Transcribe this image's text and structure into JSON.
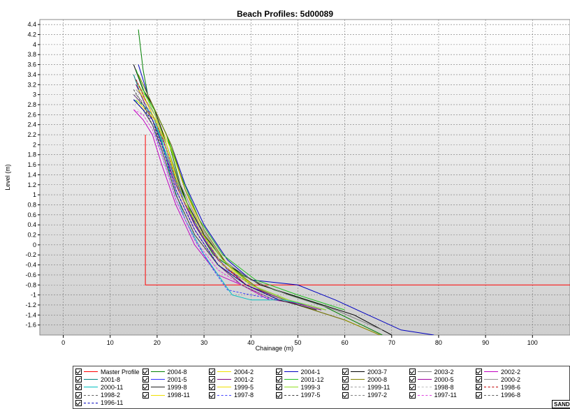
{
  "chart_data": {
    "type": "line",
    "title": "Beach Profiles: 5d00089",
    "xlabel": "Chainage (m)",
    "ylabel": "Level (m)",
    "xlim": [
      -5,
      108
    ],
    "ylim": [
      -1.8,
      4.5
    ],
    "x_ticks": [
      "0",
      "10",
      "20",
      "30",
      "40",
      "50",
      "60",
      "70",
      "80",
      "90",
      "100"
    ],
    "y_ticks": [
      "4.4",
      "4.2",
      "4",
      "3.8",
      "3.6",
      "3.4",
      "3.2",
      "3",
      "2.8",
      "2.6",
      "2.4",
      "2.2",
      "2",
      "1.8",
      "1.6",
      "1.4",
      "1.2",
      "1",
      "0.8",
      "0.6",
      "0.4",
      "0.2",
      "0",
      "-0.2",
      "-0.4",
      "-0.6",
      "-0.8",
      "-1",
      "-1.2",
      "-1.4",
      "-1.6"
    ],
    "grid": true,
    "legend_position": "bottom",
    "series": [
      {
        "name": "Master Profile",
        "color": "#ff0000",
        "dash": "",
        "x": [
          17.5,
          17.5,
          108
        ],
        "y": [
          2.2,
          -0.8,
          -0.8
        ]
      },
      {
        "name": "2004-8",
        "color": "#008000",
        "dash": "",
        "x": [
          16,
          17,
          18,
          20,
          22,
          25,
          28,
          32,
          38,
          45,
          55,
          68
        ],
        "y": [
          4.3,
          3.5,
          3.0,
          2.6,
          2.2,
          1.2,
          0.4,
          -0.2,
          -0.6,
          -0.9,
          -1.2,
          -1.8
        ]
      },
      {
        "name": "2004-2",
        "color": "#f0e000",
        "dash": "",
        "x": [
          16,
          17.5,
          19,
          21,
          23,
          26,
          30,
          36,
          42,
          50,
          60,
          70
        ],
        "y": [
          3.2,
          2.9,
          2.6,
          2.3,
          1.9,
          1.1,
          0.2,
          -0.5,
          -0.9,
          -1.2,
          -1.5,
          -1.9
        ]
      },
      {
        "name": "2004-1",
        "color": "#0000c0",
        "dash": "",
        "x": [
          16,
          18,
          20,
          23,
          26,
          30,
          35,
          40,
          50,
          58,
          65,
          72,
          79
        ],
        "y": [
          3.6,
          3.0,
          2.6,
          2.0,
          1.2,
          0.4,
          -0.3,
          -0.7,
          -0.8,
          -1.1,
          -1.4,
          -1.7,
          -1.8
        ]
      },
      {
        "name": "2003-7",
        "color": "#000000",
        "dash": "",
        "x": [
          15,
          17,
          19,
          21,
          23,
          26,
          30,
          35,
          42,
          52,
          62,
          70
        ],
        "y": [
          3.6,
          3.1,
          2.8,
          2.3,
          1.7,
          0.9,
          0.2,
          -0.4,
          -0.8,
          -1.1,
          -1.4,
          -1.8
        ]
      },
      {
        "name": "2003-2",
        "color": "#808080",
        "dash": "",
        "x": [
          15.5,
          17.5,
          19.5,
          22,
          25,
          29,
          34,
          40,
          48,
          58,
          68
        ],
        "y": [
          3.3,
          2.9,
          2.5,
          2.0,
          1.2,
          0.4,
          -0.3,
          -0.7,
          -1.0,
          -1.3,
          -1.7
        ]
      },
      {
        "name": "2002-2",
        "color": "#c000c0",
        "dash": "",
        "x": [
          15,
          17,
          19,
          21,
          24,
          28,
          33,
          38,
          44
        ],
        "y": [
          2.7,
          2.5,
          2.2,
          1.6,
          0.8,
          0.0,
          -0.6,
          -0.8,
          -1.1
        ]
      },
      {
        "name": "2001-8",
        "color": "#008080",
        "dash": "",
        "x": [
          15,
          16.5,
          18,
          20,
          22,
          25,
          29,
          34,
          40,
          48,
          56
        ],
        "y": [
          3.4,
          3.0,
          2.7,
          2.3,
          1.8,
          1.0,
          0.3,
          -0.4,
          -0.8,
          -1.1,
          -1.3
        ]
      },
      {
        "name": "2001-5",
        "color": "#3030ff",
        "dash": "",
        "x": [
          15,
          17,
          19,
          21,
          23,
          26,
          30,
          35,
          42,
          50,
          60
        ],
        "y": [
          3.0,
          2.8,
          2.6,
          2.2,
          1.6,
          0.8,
          0.1,
          -0.5,
          -0.9,
          -1.2,
          -1.5
        ]
      },
      {
        "name": "2001-2",
        "color": "#800080",
        "dash": "",
        "x": [
          15.5,
          17,
          19,
          21,
          24,
          28,
          33,
          39,
          47,
          55
        ],
        "y": [
          3.2,
          2.9,
          2.5,
          2.0,
          1.2,
          0.4,
          -0.3,
          -0.8,
          -1.1,
          -1.3
        ]
      },
      {
        "name": "2001-12",
        "color": "#20c020",
        "dash": "",
        "x": [
          15.5,
          17.5,
          20,
          22,
          25,
          29,
          34,
          41,
          50,
          60
        ],
        "y": [
          3.5,
          3.0,
          2.6,
          2.2,
          1.4,
          0.5,
          -0.2,
          -0.7,
          -1.0,
          -1.3
        ]
      },
      {
        "name": "2000-8",
        "color": "#808000",
        "dash": "",
        "x": [
          16,
          18,
          20,
          23,
          26,
          30,
          35,
          42,
          50,
          60,
          70
        ],
        "y": [
          3.4,
          3.0,
          2.6,
          2.0,
          1.1,
          0.3,
          -0.4,
          -0.9,
          -1.2,
          -1.5,
          -1.9
        ]
      },
      {
        "name": "2000-5",
        "color": "#a000a0",
        "dash": "",
        "x": [
          15,
          17,
          19,
          21,
          24,
          28,
          33,
          38,
          45,
          52
        ],
        "y": [
          3.0,
          2.8,
          2.5,
          2.0,
          1.1,
          0.3,
          -0.4,
          -0.8,
          -1.1,
          -1.2
        ]
      },
      {
        "name": "2000-2",
        "color": "#909090",
        "dash": "",
        "x": [
          15.5,
          17.5,
          19.5,
          22,
          25,
          29,
          34,
          40,
          47
        ],
        "y": [
          3.1,
          2.9,
          2.6,
          2.0,
          1.2,
          0.4,
          -0.3,
          -0.8,
          -1.1
        ]
      },
      {
        "name": "2000-11",
        "color": "#00c0c0",
        "dash": "",
        "x": [
          15,
          17,
          19,
          21,
          23,
          26,
          30,
          33,
          36,
          40,
          47,
          52
        ],
        "y": [
          2.9,
          2.8,
          2.6,
          2.1,
          1.3,
          0.5,
          -0.2,
          -0.6,
          -1.0,
          -1.1,
          -1.1,
          -1.2
        ]
      },
      {
        "name": "1999-8",
        "color": "#202020",
        "dash": "",
        "x": [
          15,
          17,
          19,
          21,
          24,
          28,
          33,
          39,
          46,
          54
        ],
        "y": [
          2.9,
          2.7,
          2.4,
          1.9,
          1.0,
          0.2,
          -0.4,
          -0.8,
          -1.1,
          -1.3
        ]
      },
      {
        "name": "1999-5",
        "color": "#f0e000",
        "dash": "",
        "x": [
          15.5,
          17.5,
          19.5,
          22,
          25,
          29,
          34,
          40,
          48
        ],
        "y": [
          2.9,
          2.7,
          2.5,
          1.9,
          1.0,
          0.3,
          -0.4,
          -0.8,
          -1.1
        ]
      },
      {
        "name": "1999-3",
        "color": "#90e020",
        "dash": "",
        "x": [
          16,
          18,
          20,
          22,
          25,
          29,
          34,
          40,
          48,
          56
        ],
        "y": [
          3.2,
          2.9,
          2.5,
          2.0,
          1.1,
          0.3,
          -0.3,
          -0.8,
          -1.1,
          -1.3
        ]
      },
      {
        "name": "1999-11",
        "color": "#a0a0a0",
        "dash": "1,1",
        "x": [
          15,
          17,
          19,
          21,
          24,
          28,
          33,
          39,
          46
        ],
        "y": [
          3.0,
          2.8,
          2.5,
          2.0,
          1.1,
          0.3,
          -0.4,
          -0.8,
          -1.1
        ]
      },
      {
        "name": "1998-8",
        "color": "#c0c0c0",
        "dash": "1,1",
        "x": [
          15,
          17,
          19,
          21,
          24,
          28,
          33,
          38,
          45
        ],
        "y": [
          2.8,
          2.6,
          2.3,
          1.8,
          0.9,
          0.1,
          -0.5,
          -0.8,
          -1.1
        ]
      },
      {
        "name": "1998-6",
        "color": "#c00000",
        "dash": "3,2",
        "x": [
          15.5,
          17.5,
          19.5,
          22,
          25,
          29,
          34,
          39,
          46
        ],
        "y": [
          3.3,
          2.9,
          2.5,
          1.9,
          1.0,
          0.3,
          -0.4,
          -0.8,
          -1.1
        ]
      },
      {
        "name": "1998-2",
        "color": "#606060",
        "dash": "3,2",
        "x": [
          15,
          17,
          19,
          21,
          24,
          28,
          33,
          38,
          45
        ],
        "y": [
          3.0,
          2.8,
          2.4,
          1.9,
          1.0,
          0.2,
          -0.4,
          -0.8,
          -1.1
        ]
      },
      {
        "name": "1998-11",
        "color": "#f0e000",
        "dash": "",
        "x": [
          16,
          18,
          20,
          22,
          25,
          29,
          34,
          40
        ],
        "y": [
          3.1,
          2.8,
          2.4,
          2.0,
          1.0,
          0.3,
          -0.4,
          -0.8
        ]
      },
      {
        "name": "1997-8",
        "color": "#4040ff",
        "dash": "3,2",
        "x": [
          15,
          17,
          19,
          21,
          24,
          28,
          32,
          35,
          40,
          46
        ],
        "y": [
          2.9,
          2.7,
          2.4,
          1.8,
          0.9,
          0.1,
          -0.5,
          -0.9,
          -1.0,
          -1.1
        ]
      },
      {
        "name": "1997-5",
        "color": "#404040",
        "dash": "3,2",
        "x": [
          15,
          17,
          19,
          21,
          24,
          28,
          33,
          39,
          46
        ],
        "y": [
          3.1,
          2.8,
          2.5,
          1.9,
          1.0,
          0.2,
          -0.4,
          -0.8,
          -1.1
        ]
      },
      {
        "name": "1997-2",
        "color": "#808080",
        "dash": "3,2",
        "x": [
          15.5,
          17.5,
          19.5,
          22,
          25,
          29,
          34,
          40
        ],
        "y": [
          3.0,
          2.8,
          2.5,
          1.9,
          1.0,
          0.3,
          -0.4,
          -0.8
        ]
      },
      {
        "name": "1997-11",
        "color": "#e040e0",
        "dash": "3,2",
        "x": [
          15,
          17,
          19,
          21,
          24,
          28,
          33,
          38
        ],
        "y": [
          2.7,
          2.6,
          2.3,
          1.8,
          0.9,
          0.1,
          -0.5,
          -0.8
        ]
      },
      {
        "name": "1996-8",
        "color": "#606060",
        "dash": "3,2",
        "x": [
          15,
          17,
          19,
          21,
          24,
          28,
          33,
          39,
          46
        ],
        "y": [
          2.9,
          2.7,
          2.4,
          1.9,
          1.0,
          0.2,
          -0.4,
          -0.8,
          -1.1
        ]
      },
      {
        "name": "1996-11",
        "color": "#0000c0",
        "dash": "3,2",
        "x": [
          15,
          17,
          19,
          21,
          24,
          28,
          33,
          39,
          46
        ],
        "y": [
          2.9,
          2.7,
          2.5,
          2.0,
          1.1,
          0.3,
          -0.4,
          -0.8,
          -1.1
        ]
      }
    ]
  },
  "legend_columns": 7,
  "sand_label": "SAND"
}
